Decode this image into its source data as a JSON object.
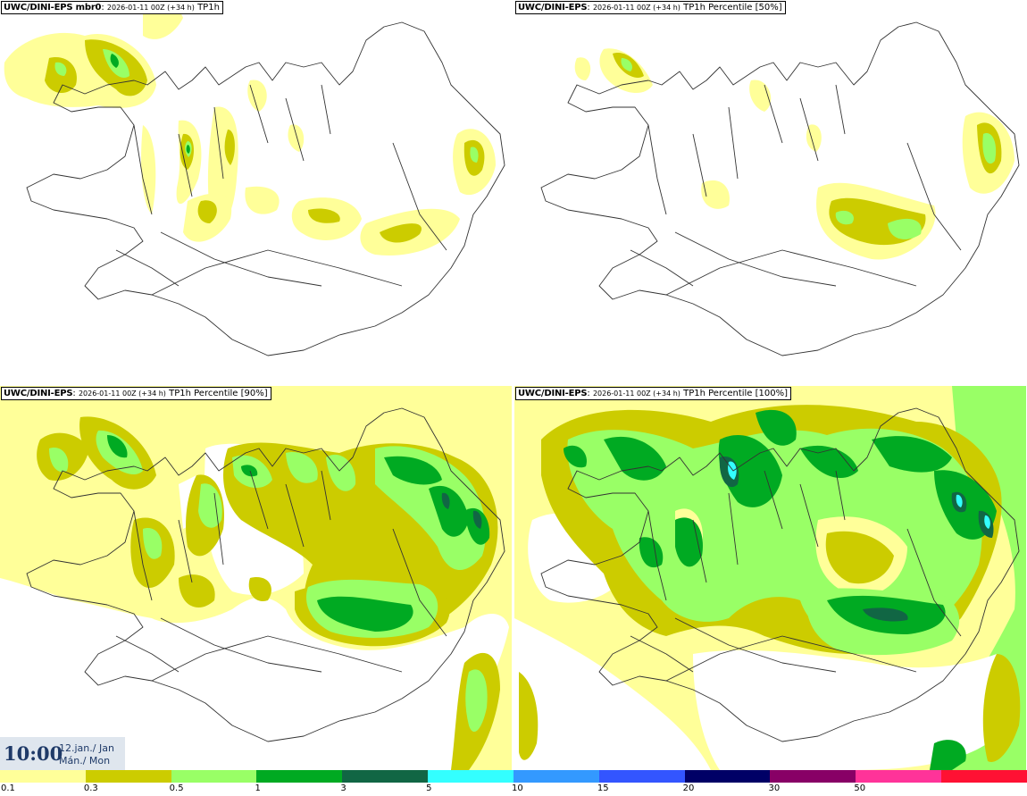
{
  "panels": [
    {
      "source": "UWC/DINI-EPS mbr0",
      "run": "2026-01-11 00Z (+34 h)",
      "field": "TP1h"
    },
    {
      "source": "UWC/DINI-EPS",
      "run": "2026-01-11 00Z (+34 h)",
      "field": "TP1h Percentile [50%]"
    },
    {
      "source": "UWC/DINI-EPS",
      "run": "2026-01-11 00Z (+34 h)",
      "field": "TP1h Percentile [90%]"
    },
    {
      "source": "UWC/DINI-EPS",
      "run": "2026-01-11 00Z (+34 h)",
      "field": "TP1h Percentile [100%]"
    }
  ],
  "valid": {
    "time": "10:00",
    "date": "12.jan./ Jan",
    "weekday": "Mán./ Mon"
  },
  "legend": {
    "colors": [
      "#ffff99",
      "#cccc00",
      "#99ff66",
      "#00aa22",
      "#116644",
      "#33ffff",
      "#3399ff",
      "#3355ff",
      "#000066",
      "#880066",
      "#ff3399",
      "#ff1133"
    ],
    "labels": [
      "0.1",
      "0.3",
      "0.5",
      "1",
      "3",
      "5",
      "10",
      "15",
      "20",
      "30",
      "50"
    ]
  },
  "map": {
    "region": "Iceland",
    "land_color": "#ffffff",
    "outline_color": "#333333"
  },
  "colors": {
    "title_text": "#1f3a68",
    "time_box": "#dfe6ee"
  }
}
